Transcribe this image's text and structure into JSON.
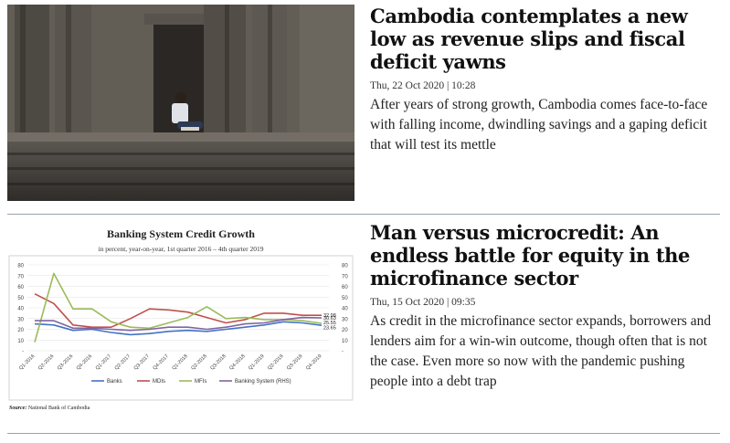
{
  "articles": [
    {
      "headline": "Cambodia contemplates a new low as revenue slips and fiscal deficit yawns",
      "meta": "Thu, 22 Oct 2020 | 10:28",
      "summary": "After years of strong growth, Cambodia comes face-to-face with falling income, dwindling savings and a gaping deficit that will test its mettle"
    },
    {
      "headline": "Man versus microcredit: An endless battle for equity in the microfinance sector",
      "meta": "Thu, 15 Oct 2020 | 09:35",
      "summary": "As credit in the microfinance sector expands, borrowers and lenders aim for a win-win outcome, though often that is not the case. Even more so now with the pandemic pushing people into a debt trap"
    }
  ],
  "chart_data": {
    "type": "line",
    "title": "Banking System Credit Growth",
    "subtitle": "in percent, year-on-year, 1st quarter 2016 – 4th quarter 2019",
    "source_label": "Source:",
    "source": "National Bank of Cambodia",
    "categories": [
      "Q1-2016",
      "Q2-2016",
      "Q3-2016",
      "Q4-2016",
      "Q1-2017",
      "Q2-2017",
      "Q3-2017",
      "Q4-2017",
      "Q1-2018",
      "Q2-2018",
      "Q3-2018",
      "Q4-2018",
      "Q1-2019",
      "Q2-2019",
      "Q3-2019",
      "Q4-2019"
    ],
    "ylim": [
      0,
      80
    ],
    "yticks": [
      "-",
      "10",
      "20",
      "30",
      "40",
      "50",
      "60",
      "70",
      "80"
    ],
    "series": [
      {
        "name": "Banks",
        "color": "#4472c4",
        "values": [
          25,
          24,
          19,
          20,
          17,
          15,
          16,
          18,
          19,
          18,
          20,
          22,
          24,
          27,
          26,
          23.65
        ]
      },
      {
        "name": "MDIs",
        "color": "#c0504d",
        "values": [
          53,
          44,
          24,
          22,
          22,
          30,
          39,
          38,
          36,
          31,
          26,
          29,
          35,
          35,
          33,
          32.98
        ]
      },
      {
        "name": "MFIs",
        "color": "#9bbb59",
        "values": [
          8,
          72,
          39,
          39,
          27,
          22,
          21,
          26,
          31,
          41,
          30,
          31,
          29,
          29,
          28,
          25.55
        ]
      },
      {
        "name": "Banking System (RHS)",
        "color": "#8064a2",
        "values": [
          28,
          28,
          21,
          21,
          20,
          19,
          20,
          22,
          22,
          20,
          22,
          25,
          26,
          29,
          31,
          30.63
        ]
      }
    ],
    "end_labels": [
      "32.98",
      "30.63",
      "25.55",
      "23.65"
    ],
    "legend_position": "bottom"
  },
  "icons": {
    "article_1_image": "temple-photo",
    "article_2_image": "chart-image"
  }
}
